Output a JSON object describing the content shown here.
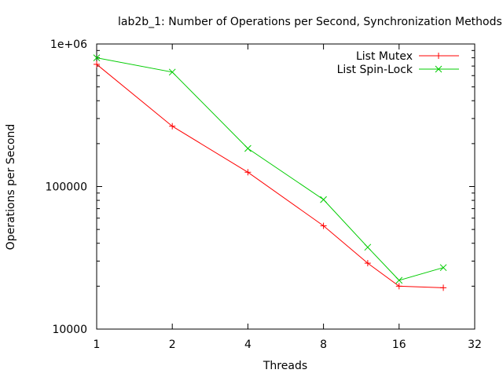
{
  "chart_data": {
    "type": "line",
    "title": "lab2b_1: Number of Operations per Second, Synchronization Methods",
    "xlabel": "Threads",
    "ylabel": "Operations per Second",
    "x_scale": "log2",
    "y_scale": "log10",
    "xlim": [
      1,
      32
    ],
    "ylim": [
      10000,
      1000000
    ],
    "x_ticks": [
      1,
      2,
      4,
      8,
      16,
      32
    ],
    "x_tick_labels": [
      "1",
      "2",
      "4",
      "8",
      "16",
      "32"
    ],
    "y_ticks": [
      10000,
      100000,
      1000000
    ],
    "y_tick_labels": [
      "10000",
      "100000",
      "1e+06"
    ],
    "legend_position": "top-right",
    "grid": false,
    "series": [
      {
        "name": "List Mutex",
        "color": "#ff0000",
        "marker": "+",
        "x": [
          1,
          2,
          4,
          8,
          12,
          16,
          24
        ],
        "y": [
          720000,
          265000,
          126000,
          53000,
          29000,
          20000,
          19500
        ]
      },
      {
        "name": "List Spin-Lock",
        "color": "#00cc00",
        "marker": "x",
        "x": [
          1,
          2,
          4,
          8,
          12,
          16,
          24
        ],
        "y": [
          800000,
          635000,
          185000,
          81000,
          37500,
          22000,
          27000
        ]
      }
    ]
  }
}
